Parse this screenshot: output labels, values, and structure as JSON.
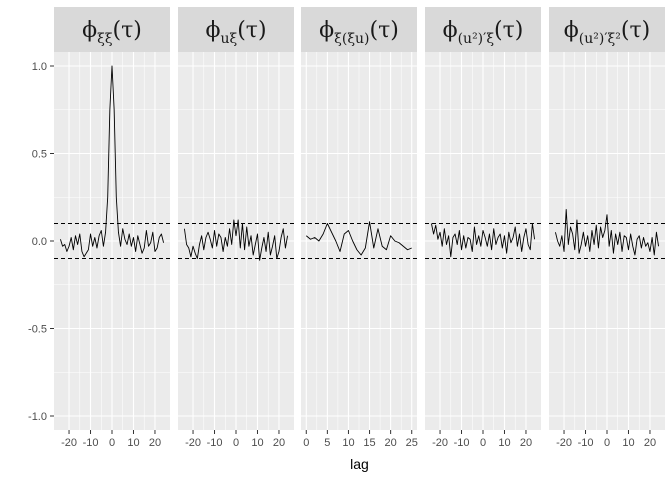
{
  "chart_data": {
    "type": "line",
    "xlabel": "lag",
    "ylabel": "",
    "ylim": [
      -1.08,
      1.08
    ],
    "y_ticks": [
      -1.0,
      -0.5,
      0.0,
      0.5,
      1.0
    ],
    "y_tick_labels": [
      "-1.0",
      "-0.5",
      "0.0",
      "0.5",
      "1.0"
    ],
    "reference_lines": [
      0.1,
      -0.1
    ],
    "grid": true,
    "theme": {
      "panel_bg": "#ebebeb",
      "grid_color": "#ffffff",
      "strip_bg": "#d9d9d9",
      "line_color": "#000000"
    },
    "panels": [
      {
        "strip_label": "ϕξξ(τ)",
        "strip_parts": [
          {
            "t": "ϕ",
            "sub": false
          },
          {
            "t": "ξξ",
            "sub": true
          },
          {
            "t": "(τ)",
            "sub": false
          }
        ],
        "xlim": [
          -27,
          27
        ],
        "x_ticks": [
          -20,
          -10,
          0,
          10,
          20
        ],
        "x_tick_labels": [
          "-20",
          "-10",
          "0",
          "10",
          "20"
        ],
        "x": [
          -24,
          -23,
          -22,
          -21,
          -20,
          -19,
          -18,
          -17,
          -16,
          -15,
          -14,
          -13,
          -12,
          -11,
          -10,
          -9,
          -8,
          -7,
          -6,
          -5,
          -4,
          -3,
          -2,
          -1,
          0,
          1,
          2,
          3,
          4,
          5,
          6,
          7,
          8,
          9,
          10,
          11,
          12,
          13,
          14,
          15,
          16,
          17,
          18,
          19,
          20,
          21,
          22,
          23,
          24
        ],
        "y": [
          0.01,
          -0.03,
          -0.02,
          -0.06,
          -0.03,
          0.02,
          -0.05,
          0.03,
          -0.02,
          0.04,
          -0.06,
          -0.09,
          -0.07,
          -0.05,
          0.04,
          -0.03,
          0.02,
          -0.04,
          0.03,
          0.06,
          -0.03,
          0.05,
          0.25,
          0.75,
          1.0,
          0.75,
          0.25,
          0.05,
          -0.03,
          0.07,
          0.01,
          -0.02,
          0.04,
          -0.03,
          0.02,
          -0.06,
          0.03,
          -0.02,
          -0.07,
          -0.04,
          0.06,
          -0.03,
          -0.01,
          0.05,
          -0.06,
          -0.04,
          0.02,
          0.04,
          -0.01
        ]
      },
      {
        "strip_label": "ϕuξ(τ)",
        "strip_parts": [
          {
            "t": "ϕ",
            "sub": false
          },
          {
            "t": "uξ",
            "sub": true
          },
          {
            "t": "(τ)",
            "sub": false
          }
        ],
        "xlim": [
          -27,
          27
        ],
        "x_ticks": [
          -20,
          -10,
          0,
          10,
          20
        ],
        "x_tick_labels": [
          "-20",
          "-10",
          "0",
          "10",
          "20"
        ],
        "x": [
          -24,
          -23,
          -22,
          -21,
          -20,
          -19,
          -18,
          -17,
          -16,
          -15,
          -14,
          -13,
          -12,
          -11,
          -10,
          -9,
          -8,
          -7,
          -6,
          -5,
          -4,
          -3,
          -2,
          -1,
          0,
          1,
          2,
          3,
          4,
          5,
          6,
          7,
          8,
          9,
          10,
          11,
          12,
          13,
          14,
          15,
          16,
          17,
          18,
          19,
          20,
          21,
          22,
          23,
          24
        ],
        "y": [
          0.07,
          -0.02,
          -0.04,
          -0.09,
          -0.03,
          -0.07,
          -0.1,
          -0.02,
          0.03,
          -0.05,
          0.02,
          0.05,
          0.01,
          -0.04,
          0.06,
          -0.03,
          0.04,
          0.02,
          -0.06,
          0.02,
          -0.03,
          0.07,
          -0.02,
          0.12,
          0.03,
          0.12,
          -0.04,
          0.1,
          -0.05,
          0.08,
          -0.03,
          0.03,
          -0.08,
          -0.02,
          0.04,
          -0.11,
          -0.04,
          0.02,
          -0.06,
          0.05,
          -0.08,
          -0.03,
          0.03,
          -0.1,
          -0.06,
          0.02,
          0.07,
          -0.04,
          0.03
        ]
      },
      {
        "strip_label": "ϕξ(ξu)(τ)",
        "strip_parts": [
          {
            "t": "ϕ",
            "sub": false
          },
          {
            "t": "ξ(ξu)",
            "sub": true
          },
          {
            "t": "(τ)",
            "sub": false
          }
        ],
        "xlim": [
          -1.25,
          26.25
        ],
        "x_ticks": [
          0,
          5,
          10,
          15,
          20,
          25
        ],
        "x_tick_labels": [
          "0",
          "5",
          "10",
          "15",
          "20",
          "25"
        ],
        "x": [
          0,
          1,
          2,
          3,
          4,
          5,
          6,
          7,
          8,
          9,
          10,
          11,
          12,
          13,
          14,
          15,
          16,
          17,
          18,
          19,
          20,
          21,
          22,
          23,
          24,
          25
        ],
        "y": [
          0.03,
          0.01,
          0.02,
          0.0,
          0.04,
          0.1,
          0.05,
          0.0,
          -0.06,
          0.04,
          0.06,
          0.0,
          -0.05,
          -0.08,
          -0.04,
          0.11,
          -0.04,
          0.07,
          -0.03,
          -0.05,
          0.03,
          0.0,
          -0.01,
          -0.03,
          -0.05,
          -0.04
        ]
      },
      {
        "strip_label": "ϕ(u²)′ξ(τ)",
        "strip_parts": [
          {
            "t": "ϕ",
            "sub": false
          },
          {
            "t": "(u²)′ξ",
            "sub": true
          },
          {
            "t": "(τ)",
            "sub": false
          }
        ],
        "xlim": [
          -27,
          27
        ],
        "x_ticks": [
          -20,
          -10,
          0,
          10,
          20
        ],
        "x_tick_labels": [
          "-20",
          "-10",
          "0",
          "10",
          "20"
        ],
        "x": [
          -24,
          -23,
          -22,
          -21,
          -20,
          -19,
          -18,
          -17,
          -16,
          -15,
          -14,
          -13,
          -12,
          -11,
          -10,
          -9,
          -8,
          -7,
          -6,
          -5,
          -4,
          -3,
          -2,
          -1,
          0,
          1,
          2,
          3,
          4,
          5,
          6,
          7,
          8,
          9,
          10,
          11,
          12,
          13,
          14,
          15,
          16,
          17,
          18,
          19,
          20,
          21,
          22,
          23,
          24
        ],
        "y": [
          0.1,
          0.04,
          0.09,
          0.01,
          0.05,
          -0.03,
          0.07,
          -0.02,
          0.03,
          -0.09,
          0.02,
          0.04,
          -0.02,
          0.06,
          -0.05,
          0.03,
          -0.04,
          0.02,
          0.01,
          -0.06,
          0.08,
          -0.02,
          0.03,
          -0.03,
          0.06,
          0.02,
          -0.03,
          0.04,
          -0.05,
          0.07,
          -0.02,
          0.02,
          0.04,
          -0.04,
          0.03,
          -0.07,
          0.05,
          -0.01,
          0.02,
          0.08,
          -0.03,
          0.04,
          -0.06,
          0.02,
          0.07,
          -0.02,
          -0.05,
          0.1,
          0.01
        ]
      },
      {
        "strip_label": "ϕ(u²)′ξ²(τ)",
        "strip_parts": [
          {
            "t": "ϕ",
            "sub": false
          },
          {
            "t": "(u²)′ξ²",
            "sub": true
          },
          {
            "t": "(τ)",
            "sub": false
          }
        ],
        "xlim": [
          -27,
          27
        ],
        "x_ticks": [
          -20,
          -10,
          0,
          10,
          20
        ],
        "x_tick_labels": [
          "-20",
          "-10",
          "0",
          "10",
          "20"
        ],
        "x": [
          -24,
          -23,
          -22,
          -21,
          -20,
          -19,
          -18,
          -17,
          -16,
          -15,
          -14,
          -13,
          -12,
          -11,
          -10,
          -9,
          -8,
          -7,
          -6,
          -5,
          -4,
          -3,
          -2,
          -1,
          0,
          1,
          2,
          3,
          4,
          5,
          6,
          7,
          8,
          9,
          10,
          11,
          12,
          13,
          14,
          15,
          16,
          17,
          18,
          19,
          20,
          21,
          22,
          23,
          24
        ],
        "y": [
          0.05,
          0.0,
          -0.03,
          0.03,
          -0.06,
          0.18,
          -0.02,
          0.08,
          0.04,
          -0.05,
          0.12,
          -0.07,
          -0.02,
          0.05,
          -0.03,
          0.03,
          -0.06,
          0.06,
          -0.02,
          0.09,
          -0.04,
          0.08,
          0.02,
          0.06,
          0.15,
          -0.03,
          0.06,
          -0.07,
          0.04,
          -0.02,
          0.05,
          -0.06,
          0.03,
          0.02,
          -0.05,
          0.04,
          -0.03,
          -0.08,
          0.01,
          0.03,
          -0.04,
          0.02,
          -0.03,
          -0.01,
          -0.06,
          0.02,
          -0.08,
          0.05,
          -0.03
        ]
      }
    ]
  }
}
